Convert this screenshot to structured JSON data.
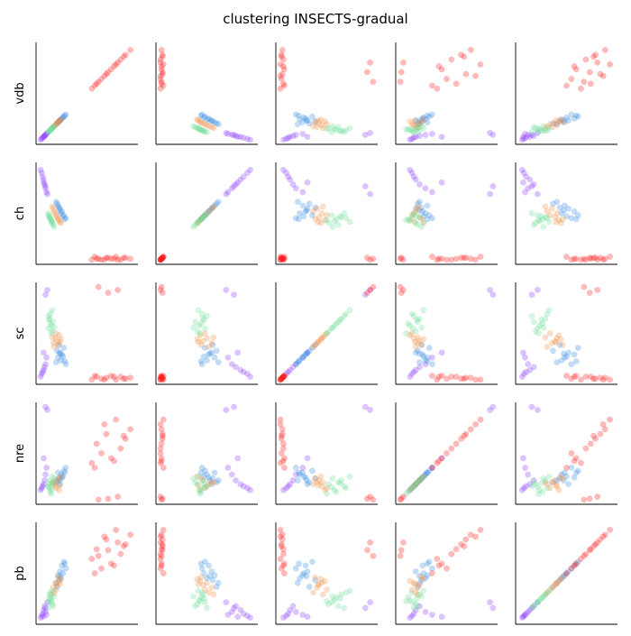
{
  "chart_data": {
    "type": "scatter",
    "kind": "pairplot",
    "title": "clustering INSECTS-gradual",
    "variables": [
      "vdb",
      "ch",
      "sc",
      "nre",
      "pb"
    ],
    "axes_ticks_shown": false,
    "grid": false,
    "legend": "none",
    "point_alpha": 0.3,
    "value_scale": "normalized 0-1 within each variable",
    "cluster_colors": {
      "violet": "#8b3cff",
      "blue": "#3a8fe0",
      "orange": "#f0914a",
      "green": "#6fdf9a",
      "red": "#ff1a1a"
    },
    "clusters": [
      {
        "color": "violet",
        "points": [
          {
            "vdb": 0.02,
            "ch": 0.95,
            "sc": 0.05,
            "nre": 0.12,
            "pb": 0.04
          },
          {
            "vdb": 0.03,
            "ch": 0.92,
            "sc": 0.08,
            "nre": 0.14,
            "pb": 0.06
          },
          {
            "vdb": 0.04,
            "ch": 0.88,
            "sc": 0.1,
            "nre": 0.16,
            "pb": 0.08
          },
          {
            "vdb": 0.05,
            "ch": 0.85,
            "sc": 0.12,
            "nre": 0.18,
            "pb": 0.12
          },
          {
            "vdb": 0.06,
            "ch": 0.8,
            "sc": 0.15,
            "nre": 0.22,
            "pb": 0.16
          },
          {
            "vdb": 0.07,
            "ch": 0.76,
            "sc": 0.18,
            "nre": 0.28,
            "pb": 0.1
          },
          {
            "vdb": 0.08,
            "ch": 0.72,
            "sc": 0.25,
            "nre": 0.35,
            "pb": 0.07
          },
          {
            "vdb": 0.05,
            "ch": 0.82,
            "sc": 0.3,
            "nre": 0.45,
            "pb": 0.05
          },
          {
            "vdb": 0.09,
            "ch": 0.7,
            "sc": 0.95,
            "nre": 0.95,
            "pb": 0.2
          },
          {
            "vdb": 0.07,
            "ch": 0.78,
            "sc": 0.9,
            "nre": 0.98,
            "pb": 0.14
          }
        ]
      },
      {
        "color": "blue",
        "points": [
          {
            "vdb": 0.18,
            "ch": 0.62,
            "sc": 0.2,
            "nre": 0.22,
            "pb": 0.4
          },
          {
            "vdb": 0.2,
            "ch": 0.58,
            "sc": 0.25,
            "nre": 0.3,
            "pb": 0.48
          },
          {
            "vdb": 0.22,
            "ch": 0.55,
            "sc": 0.3,
            "nre": 0.18,
            "pb": 0.52
          },
          {
            "vdb": 0.24,
            "ch": 0.52,
            "sc": 0.28,
            "nre": 0.25,
            "pb": 0.58
          },
          {
            "vdb": 0.26,
            "ch": 0.48,
            "sc": 0.35,
            "nre": 0.32,
            "pb": 0.62
          },
          {
            "vdb": 0.23,
            "ch": 0.5,
            "sc": 0.22,
            "nre": 0.28,
            "pb": 0.45
          },
          {
            "vdb": 0.28,
            "ch": 0.45,
            "sc": 0.18,
            "nre": 0.35,
            "pb": 0.55
          },
          {
            "vdb": 0.19,
            "ch": 0.6,
            "sc": 0.32,
            "nre": 0.2,
            "pb": 0.36
          },
          {
            "vdb": 0.25,
            "ch": 0.47,
            "sc": 0.26,
            "nre": 0.26,
            "pb": 0.5
          },
          {
            "vdb": 0.21,
            "ch": 0.56,
            "sc": 0.38,
            "nre": 0.24,
            "pb": 0.43
          },
          {
            "vdb": 0.27,
            "ch": 0.44,
            "sc": 0.21,
            "nre": 0.3,
            "pb": 0.6
          },
          {
            "vdb": 0.22,
            "ch": 0.53,
            "sc": 0.29,
            "nre": 0.22,
            "pb": 0.47
          }
        ]
      },
      {
        "color": "orange",
        "points": [
          {
            "vdb": 0.15,
            "ch": 0.55,
            "sc": 0.4,
            "nre": 0.2,
            "pb": 0.35
          },
          {
            "vdb": 0.17,
            "ch": 0.5,
            "sc": 0.45,
            "nre": 0.16,
            "pb": 0.4
          },
          {
            "vdb": 0.19,
            "ch": 0.46,
            "sc": 0.42,
            "nre": 0.22,
            "pb": 0.38
          },
          {
            "vdb": 0.21,
            "ch": 0.43,
            "sc": 0.48,
            "nre": 0.12,
            "pb": 0.42
          },
          {
            "vdb": 0.16,
            "ch": 0.52,
            "sc": 0.36,
            "nre": 0.18,
            "pb": 0.3
          },
          {
            "vdb": 0.23,
            "ch": 0.4,
            "sc": 0.44,
            "nre": 0.26,
            "pb": 0.44
          },
          {
            "vdb": 0.18,
            "ch": 0.48,
            "sc": 0.5,
            "nre": 0.14,
            "pb": 0.33
          },
          {
            "vdb": 0.2,
            "ch": 0.44,
            "sc": 0.38,
            "nre": 0.24,
            "pb": 0.46
          },
          {
            "vdb": 0.14,
            "ch": 0.57,
            "sc": 0.46,
            "nre": 0.2,
            "pb": 0.28
          },
          {
            "vdb": 0.22,
            "ch": 0.41,
            "sc": 0.41,
            "nre": 0.17,
            "pb": 0.39
          }
        ]
      },
      {
        "color": "green",
        "points": [
          {
            "vdb": 0.1,
            "ch": 0.48,
            "sc": 0.55,
            "nre": 0.15,
            "pb": 0.2
          },
          {
            "vdb": 0.12,
            "ch": 0.44,
            "sc": 0.6,
            "nre": 0.1,
            "pb": 0.25
          },
          {
            "vdb": 0.14,
            "ch": 0.4,
            "sc": 0.52,
            "nre": 0.18,
            "pb": 0.18
          },
          {
            "vdb": 0.11,
            "ch": 0.46,
            "sc": 0.65,
            "nre": 0.22,
            "pb": 0.28
          },
          {
            "vdb": 0.13,
            "ch": 0.42,
            "sc": 0.58,
            "nre": 0.12,
            "pb": 0.22
          },
          {
            "vdb": 0.15,
            "ch": 0.38,
            "sc": 0.62,
            "nre": 0.2,
            "pb": 0.16
          },
          {
            "vdb": 0.12,
            "ch": 0.45,
            "sc": 0.7,
            "nre": 0.14,
            "pb": 0.3
          },
          {
            "vdb": 0.16,
            "ch": 0.36,
            "sc": 0.56,
            "nre": 0.24,
            "pb": 0.26
          },
          {
            "vdb": 0.1,
            "ch": 0.5,
            "sc": 0.68,
            "nre": 0.16,
            "pb": 0.14
          },
          {
            "vdb": 0.14,
            "ch": 0.41,
            "sc": 0.74,
            "nre": 0.26,
            "pb": 0.32
          },
          {
            "vdb": 0.13,
            "ch": 0.43,
            "sc": 0.5,
            "nre": 0.08,
            "pb": 0.21
          },
          {
            "vdb": 0.11,
            "ch": 0.47,
            "sc": 0.64,
            "nre": 0.19,
            "pb": 0.24
          }
        ]
      },
      {
        "color": "red",
        "points": [
          {
            "vdb": 0.55,
            "ch": 0.02,
            "sc": 0.02,
            "nre": 0.4,
            "pb": 0.65
          },
          {
            "vdb": 0.6,
            "ch": 0.03,
            "sc": 0.05,
            "nre": 0.6,
            "pb": 0.75
          },
          {
            "vdb": 0.65,
            "ch": 0.02,
            "sc": 0.03,
            "nre": 0.5,
            "pb": 0.55
          },
          {
            "vdb": 0.7,
            "ch": 0.04,
            "sc": 0.04,
            "nre": 0.7,
            "pb": 0.85
          },
          {
            "vdb": 0.75,
            "ch": 0.03,
            "sc": 0.06,
            "nre": 0.45,
            "pb": 0.6
          },
          {
            "vdb": 0.8,
            "ch": 0.05,
            "sc": 0.02,
            "nre": 0.85,
            "pb": 0.95
          },
          {
            "vdb": 0.85,
            "ch": 0.02,
            "sc": 0.05,
            "nre": 0.55,
            "pb": 0.7
          },
          {
            "vdb": 0.9,
            "ch": 0.04,
            "sc": 0.03,
            "nre": 0.65,
            "pb": 0.8
          },
          {
            "vdb": 0.95,
            "ch": 0.03,
            "sc": 0.04,
            "nre": 0.75,
            "pb": 0.9
          },
          {
            "vdb": 0.58,
            "ch": 0.05,
            "sc": 0.06,
            "nre": 0.35,
            "pb": 0.5
          },
          {
            "vdb": 0.68,
            "ch": 0.02,
            "sc": 0.02,
            "nre": 0.8,
            "pb": 0.88
          },
          {
            "vdb": 0.78,
            "ch": 0.03,
            "sc": 0.05,
            "nre": 0.42,
            "pb": 0.58
          },
          {
            "vdb": 0.88,
            "ch": 0.04,
            "sc": 0.03,
            "nre": 0.68,
            "pb": 0.78
          },
          {
            "vdb": 0.62,
            "ch": 0.03,
            "sc": 0.98,
            "nre": 0.02,
            "pb": 0.68
          },
          {
            "vdb": 0.82,
            "ch": 0.02,
            "sc": 0.95,
            "nre": 0.05,
            "pb": 0.82
          },
          {
            "vdb": 0.72,
            "ch": 0.04,
            "sc": 0.92,
            "nre": 0.03,
            "pb": 0.74
          }
        ]
      }
    ]
  }
}
